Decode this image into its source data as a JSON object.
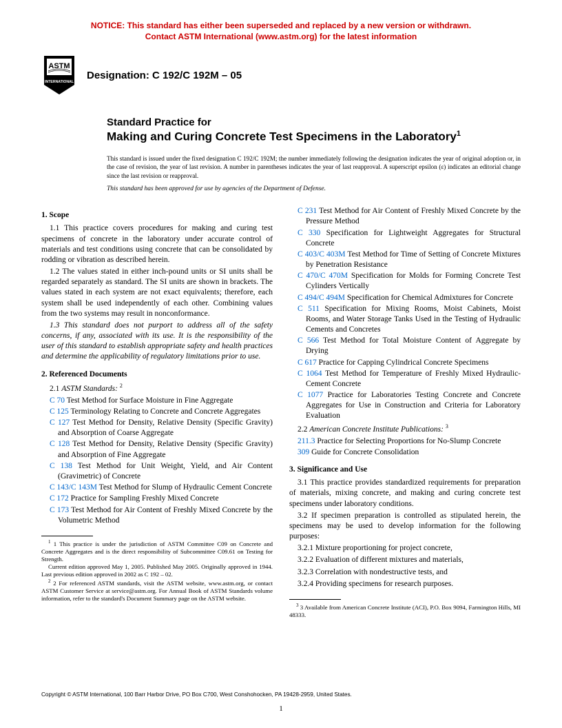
{
  "notice": {
    "line1": "NOTICE: This standard has either been superseded and replaced by a new version or withdrawn.",
    "line2": "Contact ASTM International (www.astm.org) for the latest information",
    "color": "#cc0000"
  },
  "designation": "Designation: C 192/C 192M – 05",
  "title": {
    "super": "Standard Practice for",
    "main": "Making and Curing Concrete Test Specimens in the Laboratory",
    "footnote_mark": "1"
  },
  "issuance": "This standard is issued under the fixed designation C 192/C 192M; the number immediately following the designation indicates the year of original adoption or, in the case of revision, the year of last revision. A number in parentheses indicates the year of last reapproval. A superscript epsilon (ε) indicates an editorial change since the last revision or reapproval.",
  "dod": "This standard has been approved for use by agencies of the Department of Defense.",
  "sections": {
    "scope": {
      "head": "1. Scope",
      "p1": "1.1 This practice covers procedures for making and curing test specimens of concrete in the laboratory under accurate control of materials and test conditions using concrete that can be consolidated by rodding or vibration as described herein.",
      "p2": "1.2 The values stated in either inch-pound units or SI units shall be regarded separately as standard. The SI units are shown in brackets. The values stated in each system are not exact equivalents; therefore, each system shall be used independently of each other. Combining values from the two systems may result in nonconformance.",
      "p3": "1.3 This standard does not purport to address all of the safety concerns, if any, associated with its use. It is the responsibility of the user of this standard to establish appropriate safety and health practices and determine the applicability of regulatory limitations prior to use."
    },
    "refs": {
      "head": "2. Referenced Documents",
      "sub1": "2.1 ASTM Standards:",
      "fn2mark": "2",
      "left": [
        {
          "code": "C 70",
          "text": "Test Method for Surface Moisture in Fine Aggregate"
        },
        {
          "code": "C 125",
          "text": "Terminology Relating to Concrete and Concrete Aggregates"
        },
        {
          "code": "C 127",
          "text": "Test Method for Density, Relative Density (Specific Gravity) and Absorption of Coarse Aggregate"
        },
        {
          "code": "C 128",
          "text": "Test Method for Density, Relative Density (Specific Gravity) and Absorption of Fine Aggregate"
        },
        {
          "code": "C 138",
          "text": "Test Method for Unit Weight, Yield, and Air Content (Gravimetric) of Concrete"
        },
        {
          "code": "C 143/C 143M",
          "text": "Test Method for Slump of Hydraulic Cement Concrete"
        },
        {
          "code": "C 172",
          "text": "Practice for Sampling Freshly Mixed Concrete"
        },
        {
          "code": "C 173",
          "text": "Test Method for Air Content of Freshly Mixed Concrete by the Volumetric Method"
        }
      ],
      "right": [
        {
          "code": "C 231",
          "text": "Test Method for Air Content of Freshly Mixed Concrete by the Pressure Method"
        },
        {
          "code": "C 330",
          "text": "Specification for Lightweight Aggregates for Structural Concrete"
        },
        {
          "code": "C 403/C 403M",
          "text": "Test Method for Time of Setting of Concrete Mixtures by Penetration Resistance"
        },
        {
          "code": "C 470/C 470M",
          "text": "Specification for Molds for Forming Concrete Test Cylinders Vertically"
        },
        {
          "code": "C 494/C 494M",
          "text": "Specification for Chemical Admixtures for Concrete"
        },
        {
          "code": "C 511",
          "text": "Specification for Mixing Rooms, Moist Cabinets, Moist Rooms, and Water Storage Tanks Used in the Testing of Hydraulic Cements and Concretes"
        },
        {
          "code": "C 566",
          "text": "Test Method for Total Moisture Content of Aggregate by Drying"
        },
        {
          "code": "C 617",
          "text": "Practice for Capping Cylindrical Concrete Specimens"
        },
        {
          "code": "C 1064",
          "text": "Test Method for Temperature of Freshly Mixed Hydraulic-Cement Concrete"
        },
        {
          "code": "C 1077",
          "text": "Practice for Laboratories Testing Concrete and Concrete Aggregates for Use in Construction and Criteria for Laboratory Evaluation"
        }
      ],
      "sub2": "2.2  American Concrete Institute Publications:",
      "fn3mark": "3",
      "aci": [
        {
          "code": "211.3",
          "text": "Practice for Selecting Proportions for No-Slump Concrete"
        },
        {
          "code": "309",
          "text": "Guide for Concrete Consolidation"
        }
      ]
    },
    "sig": {
      "head": "3. Significance and Use",
      "p1": "3.1 This practice provides standardized requirements for preparation of materials, mixing concrete, and making and curing concrete test specimens under laboratory conditions.",
      "p2": "3.2 If specimen preparation is controlled as stipulated herein, the specimens may be used to develop information for the following purposes:",
      "b1": "3.2.1 Mixture proportioning for project concrete,",
      "b2": "3.2.2 Evaluation of different mixtures and materials,",
      "b3": "3.2.3 Correlation with nondestructive tests, and",
      "b4": "3.2.4 Providing specimens for research purposes."
    }
  },
  "footnotes": {
    "left": [
      "1 This practice is under the jurisdiction of ASTM Committee C09 on Concrete and Concrete Aggregates and is the direct responsibility of Subcommittee C09.61 on Testing for Strength.",
      "Current edition approved May 1, 2005. Published May 2005. Originally approved in 1944. Last previous edition approved in 2002 as C 192 – 02.",
      "2 For referenced ASTM standards, visit the ASTM website, www.astm.org, or contact ASTM Customer Service at service@astm.org. For Annual Book of ASTM Standards volume information, refer to the standard's Document Summary page on the ASTM website."
    ],
    "right": "3 Available from American Concrete Institute (ACI), P.O. Box 9094, Farmington Hills, MI 48333."
  },
  "copyright": "Copyright © ASTM International, 100 Barr Harbor Drive, PO Box C700, West Conshohocken, PA 19428-2959, United States.",
  "pagenum": "1",
  "colors": {
    "link": "#0066cc",
    "notice": "#cc0000"
  }
}
